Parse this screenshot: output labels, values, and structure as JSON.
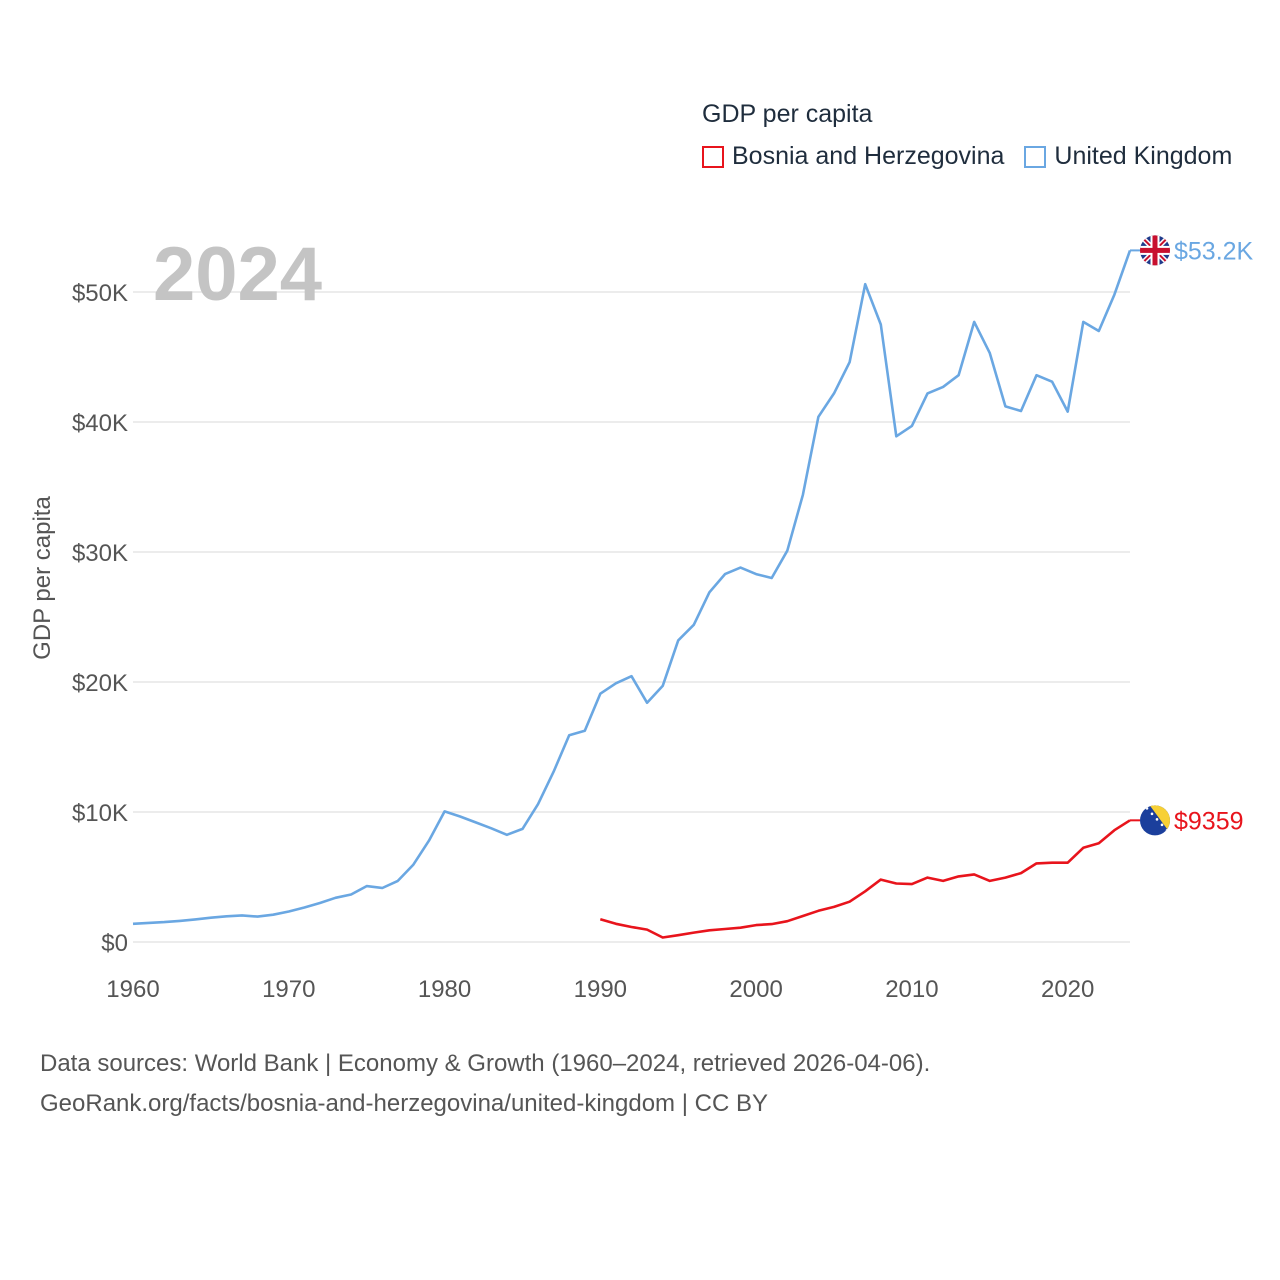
{
  "legend": {
    "title": "GDP per capita",
    "items": [
      {
        "label": "Bosnia and Herzegovina",
        "color": "#e8141c"
      },
      {
        "label": "United Kingdom",
        "color": "#6aa7e2"
      }
    ]
  },
  "source": {
    "line1": "Data sources: World Bank | Economy & Growth (1960–2024, retrieved 2026-04-06).",
    "line2": "GeoRank.org/facts/bosnia-and-herzegovina/united-kingdom | CC BY"
  },
  "chart_data": {
    "type": "line",
    "title": "GDP per capita",
    "year_label": "2024",
    "xlabel": "",
    "ylabel": "GDP per capita",
    "xlim": [
      1960,
      2024
    ],
    "ylim": [
      0,
      55000
    ],
    "x_ticks": [
      1960,
      1970,
      1980,
      1990,
      2000,
      2010,
      2020
    ],
    "y_ticks": [
      {
        "value": 0,
        "label": "$0"
      },
      {
        "value": 10000,
        "label": "$10K"
      },
      {
        "value": 20000,
        "label": "$20K"
      },
      {
        "value": 30000,
        "label": "$30K"
      },
      {
        "value": 40000,
        "label": "$40K"
      },
      {
        "value": 50000,
        "label": "$50K"
      }
    ],
    "grid": true,
    "series": [
      {
        "name": "United Kingdom",
        "color": "#6aa7e2",
        "end_label": "$53.2K",
        "flag": "uk-flag-icon",
        "x": [
          1960,
          1961,
          1962,
          1963,
          1964,
          1965,
          1966,
          1967,
          1968,
          1969,
          1970,
          1971,
          1972,
          1973,
          1974,
          1975,
          1976,
          1977,
          1978,
          1979,
          1980,
          1981,
          1982,
          1983,
          1984,
          1985,
          1986,
          1987,
          1988,
          1989,
          1990,
          1991,
          1992,
          1993,
          1994,
          1995,
          1996,
          1997,
          1998,
          1999,
          2000,
          2001,
          2002,
          2003,
          2004,
          2005,
          2006,
          2007,
          2008,
          2009,
          2010,
          2011,
          2012,
          2013,
          2014,
          2015,
          2016,
          2017,
          2018,
          2019,
          2020,
          2021,
          2022,
          2023,
          2024
        ],
        "values": [
          1400,
          1470,
          1530,
          1620,
          1740,
          1870,
          1980,
          2050,
          1950,
          2100,
          2350,
          2650,
          3000,
          3400,
          3650,
          4300,
          4150,
          4700,
          5950,
          7800,
          10050,
          9650,
          9200,
          8750,
          8250,
          8700,
          10600,
          13100,
          15900,
          16250,
          19100,
          19900,
          20450,
          18400,
          19700,
          23200,
          24400,
          26900,
          28300,
          28800,
          28300,
          28000,
          30100,
          34400,
          40400,
          42200,
          44600,
          50600,
          47500,
          38900,
          39700,
          42200,
          42700,
          43600,
          47700,
          45300,
          41200,
          40850,
          43600,
          43100,
          40800,
          47700,
          47000,
          49800,
          53200
        ]
      },
      {
        "name": "Bosnia and Herzegovina",
        "color": "#e8141c",
        "end_label": "$9359",
        "flag": "ba-flag-icon",
        "x": [
          1990,
          1991,
          1992,
          1993,
          1994,
          1995,
          1996,
          1997,
          1998,
          1999,
          2000,
          2001,
          2002,
          2003,
          2004,
          2005,
          2006,
          2007,
          2008,
          2009,
          2010,
          2011,
          2012,
          2013,
          2014,
          2015,
          2016,
          2017,
          2018,
          2019,
          2020,
          2021,
          2022,
          2023,
          2024
        ],
        "values": [
          1750,
          1400,
          1150,
          950,
          350,
          520,
          720,
          900,
          1000,
          1100,
          1300,
          1380,
          1600,
          2000,
          2400,
          2700,
          3100,
          3900,
          4800,
          4500,
          4450,
          4950,
          4700,
          5050,
          5200,
          4700,
          4950,
          5300,
          6050,
          6100,
          6100,
          7250,
          7600,
          8600,
          9359
        ]
      }
    ]
  }
}
